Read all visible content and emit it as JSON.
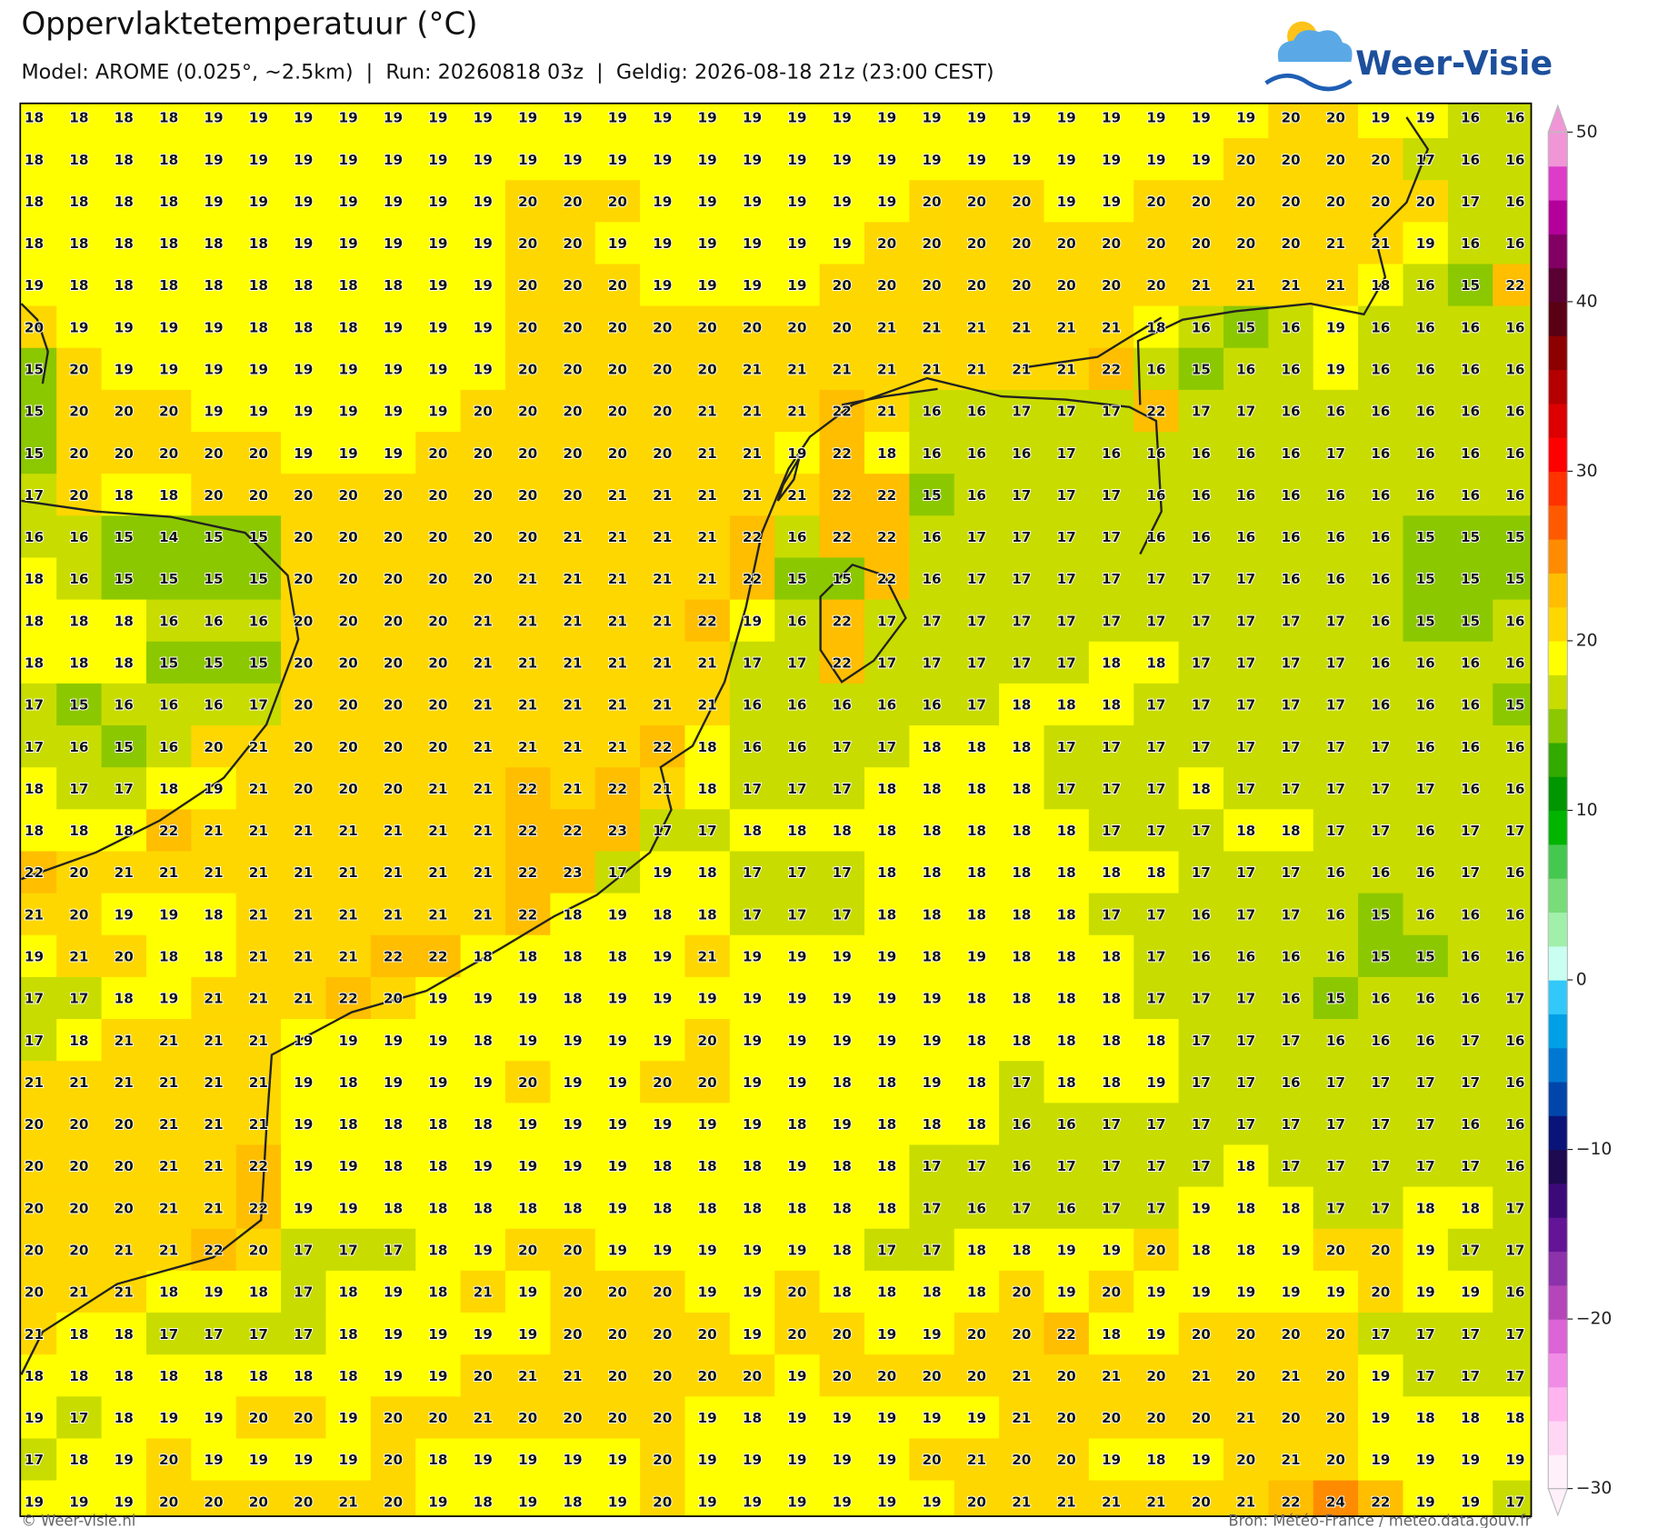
{
  "header": {
    "title": "Oppervlaktetemperatuur (°C)",
    "subtitle": "Model: AROME (0.025°, ~2.5km)  |  Run: 20260818 03z  |  Geldig: 2026-08-18 21z (23:00 CEST)",
    "logo": "Weer-Visie"
  },
  "map": {
    "rows": [
      [
        18,
        18,
        18,
        18,
        19,
        19,
        19,
        19,
        19,
        19,
        19,
        19,
        19,
        19,
        19,
        19,
        19,
        19,
        19,
        19,
        19,
        19,
        19,
        19,
        19,
        19,
        19,
        19,
        20,
        20,
        19,
        19,
        16,
        16
      ],
      [
        18,
        18,
        18,
        18,
        19,
        19,
        19,
        19,
        19,
        19,
        19,
        19,
        19,
        19,
        19,
        19,
        19,
        19,
        19,
        19,
        19,
        19,
        19,
        19,
        19,
        19,
        19,
        20,
        20,
        20,
        20,
        17,
        16,
        16
      ],
      [
        18,
        18,
        18,
        18,
        19,
        19,
        19,
        19,
        19,
        19,
        19,
        20,
        20,
        20,
        19,
        19,
        19,
        19,
        19,
        19,
        20,
        20,
        20,
        19,
        19,
        20,
        20,
        20,
        20,
        20,
        20,
        20,
        17,
        16
      ],
      [
        18,
        18,
        18,
        18,
        18,
        18,
        19,
        19,
        19,
        19,
        19,
        20,
        20,
        19,
        19,
        19,
        19,
        19,
        19,
        20,
        20,
        20,
        20,
        20,
        20,
        20,
        20,
        20,
        20,
        21,
        21,
        19,
        16,
        16
      ],
      [
        19,
        18,
        18,
        18,
        18,
        18,
        18,
        18,
        18,
        19,
        19,
        20,
        20,
        20,
        19,
        19,
        19,
        19,
        20,
        20,
        20,
        20,
        20,
        20,
        20,
        20,
        21,
        21,
        21,
        21,
        18,
        16,
        15,
        22
      ],
      [
        20,
        19,
        19,
        19,
        19,
        18,
        18,
        18,
        19,
        19,
        19,
        20,
        20,
        20,
        20,
        20,
        20,
        20,
        20,
        21,
        21,
        21,
        21,
        21,
        21,
        18,
        16,
        15,
        16,
        19,
        16,
        16,
        16,
        16
      ],
      [
        15,
        20,
        19,
        19,
        19,
        19,
        19,
        19,
        19,
        19,
        19,
        20,
        20,
        20,
        20,
        20,
        21,
        21,
        21,
        21,
        21,
        21,
        21,
        21,
        22,
        16,
        15,
        16,
        16,
        19,
        16,
        16,
        16,
        16
      ],
      [
        15,
        20,
        20,
        20,
        19,
        19,
        19,
        19,
        19,
        19,
        20,
        20,
        20,
        20,
        20,
        21,
        21,
        21,
        22,
        21,
        16,
        16,
        17,
        17,
        17,
        22,
        17,
        17,
        16,
        16,
        16,
        16,
        16,
        16
      ],
      [
        15,
        20,
        20,
        20,
        20,
        20,
        19,
        19,
        19,
        20,
        20,
        20,
        20,
        20,
        20,
        21,
        21,
        19,
        22,
        18,
        16,
        16,
        16,
        17,
        16,
        16,
        16,
        16,
        16,
        17,
        16,
        16,
        16,
        16
      ],
      [
        17,
        20,
        18,
        18,
        20,
        20,
        20,
        20,
        20,
        20,
        20,
        20,
        20,
        21,
        21,
        21,
        21,
        21,
        22,
        22,
        15,
        16,
        17,
        17,
        17,
        16,
        16,
        16,
        16,
        16,
        16,
        16,
        16,
        16
      ],
      [
        16,
        16,
        15,
        14,
        15,
        15,
        20,
        20,
        20,
        20,
        20,
        20,
        21,
        21,
        21,
        21,
        22,
        16,
        22,
        22,
        16,
        17,
        17,
        17,
        17,
        16,
        16,
        16,
        16,
        16,
        16,
        15,
        15,
        15
      ],
      [
        18,
        16,
        15,
        15,
        15,
        15,
        20,
        20,
        20,
        20,
        20,
        21,
        21,
        21,
        21,
        21,
        22,
        15,
        15,
        22,
        16,
        17,
        17,
        17,
        17,
        17,
        17,
        17,
        16,
        16,
        16,
        15,
        15,
        15
      ],
      [
        18,
        18,
        18,
        16,
        16,
        16,
        20,
        20,
        20,
        20,
        21,
        21,
        21,
        21,
        21,
        22,
        19,
        16,
        22,
        17,
        17,
        17,
        17,
        17,
        17,
        17,
        17,
        17,
        17,
        17,
        16,
        15,
        15,
        16
      ],
      [
        18,
        18,
        18,
        15,
        15,
        15,
        20,
        20,
        20,
        20,
        21,
        21,
        21,
        21,
        21,
        21,
        17,
        17,
        22,
        17,
        17,
        17,
        17,
        17,
        18,
        18,
        17,
        17,
        17,
        17,
        16,
        16,
        16,
        16
      ],
      [
        17,
        15,
        16,
        16,
        16,
        17,
        20,
        20,
        20,
        20,
        21,
        21,
        21,
        21,
        21,
        21,
        16,
        16,
        16,
        16,
        16,
        17,
        18,
        18,
        18,
        17,
        17,
        17,
        17,
        17,
        16,
        16,
        16,
        15
      ],
      [
        17,
        16,
        15,
        16,
        20,
        21,
        20,
        20,
        20,
        20,
        21,
        21,
        21,
        21,
        22,
        18,
        16,
        16,
        17,
        17,
        18,
        18,
        18,
        17,
        17,
        17,
        17,
        17,
        17,
        17,
        17,
        16,
        16,
        16
      ],
      [
        18,
        17,
        17,
        18,
        19,
        21,
        20,
        20,
        20,
        21,
        21,
        22,
        21,
        22,
        21,
        18,
        17,
        17,
        17,
        18,
        18,
        18,
        18,
        17,
        17,
        17,
        18,
        17,
        17,
        17,
        17,
        17,
        16,
        16
      ],
      [
        18,
        18,
        18,
        22,
        21,
        21,
        21,
        21,
        21,
        21,
        21,
        22,
        22,
        23,
        17,
        17,
        18,
        18,
        18,
        18,
        18,
        18,
        18,
        18,
        17,
        17,
        17,
        18,
        18,
        17,
        17,
        16,
        17,
        17
      ],
      [
        22,
        20,
        21,
        21,
        21,
        21,
        21,
        21,
        21,
        21,
        21,
        22,
        23,
        17,
        19,
        18,
        17,
        17,
        17,
        18,
        18,
        18,
        18,
        18,
        18,
        18,
        17,
        17,
        17,
        16,
        16,
        16,
        17,
        16
      ],
      [
        21,
        20,
        19,
        19,
        18,
        21,
        21,
        21,
        21,
        21,
        21,
        22,
        18,
        19,
        18,
        18,
        17,
        17,
        17,
        18,
        18,
        18,
        18,
        18,
        17,
        17,
        16,
        17,
        17,
        16,
        15,
        16,
        16,
        16
      ],
      [
        19,
        21,
        20,
        18,
        18,
        21,
        21,
        21,
        22,
        22,
        18,
        18,
        18,
        18,
        19,
        21,
        19,
        19,
        19,
        19,
        18,
        19,
        18,
        18,
        18,
        17,
        16,
        16,
        16,
        16,
        15,
        15,
        16,
        16
      ],
      [
        17,
        17,
        18,
        19,
        21,
        21,
        21,
        22,
        20,
        19,
        19,
        19,
        18,
        19,
        19,
        19,
        19,
        19,
        19,
        19,
        19,
        18,
        18,
        18,
        18,
        17,
        17,
        17,
        16,
        15,
        16,
        16,
        16,
        17
      ],
      [
        17,
        18,
        21,
        21,
        21,
        21,
        19,
        19,
        19,
        19,
        18,
        19,
        19,
        19,
        19,
        20,
        19,
        19,
        19,
        19,
        19,
        18,
        18,
        18,
        18,
        18,
        17,
        17,
        17,
        16,
        16,
        16,
        17,
        16
      ],
      [
        21,
        21,
        21,
        21,
        21,
        21,
        19,
        18,
        19,
        19,
        19,
        20,
        19,
        19,
        20,
        20,
        19,
        19,
        18,
        18,
        19,
        18,
        17,
        18,
        18,
        19,
        17,
        17,
        16,
        17,
        17,
        17,
        17,
        16
      ],
      [
        20,
        20,
        20,
        21,
        21,
        21,
        19,
        18,
        18,
        18,
        18,
        19,
        19,
        19,
        19,
        19,
        19,
        18,
        19,
        18,
        18,
        18,
        16,
        16,
        17,
        17,
        17,
        17,
        17,
        17,
        17,
        17,
        16,
        16
      ],
      [
        20,
        20,
        20,
        21,
        21,
        22,
        19,
        19,
        18,
        18,
        19,
        19,
        19,
        19,
        18,
        18,
        18,
        19,
        18,
        18,
        17,
        17,
        16,
        17,
        17,
        17,
        17,
        18,
        17,
        17,
        17,
        17,
        17,
        16
      ],
      [
        20,
        20,
        20,
        21,
        21,
        22,
        19,
        19,
        18,
        18,
        18,
        18,
        18,
        19,
        18,
        18,
        18,
        18,
        18,
        18,
        17,
        16,
        17,
        16,
        17,
        17,
        19,
        18,
        18,
        17,
        17,
        18,
        18,
        17
      ],
      [
        20,
        20,
        21,
        21,
        22,
        20,
        17,
        17,
        17,
        18,
        19,
        20,
        20,
        19,
        19,
        19,
        19,
        19,
        18,
        17,
        17,
        18,
        18,
        19,
        19,
        20,
        18,
        18,
        19,
        20,
        20,
        19,
        17,
        17
      ],
      [
        20,
        21,
        21,
        18,
        19,
        18,
        17,
        18,
        19,
        18,
        21,
        19,
        20,
        20,
        20,
        19,
        19,
        20,
        18,
        18,
        18,
        18,
        20,
        19,
        20,
        19,
        19,
        19,
        19,
        19,
        20,
        19,
        19,
        16
      ],
      [
        21,
        18,
        18,
        17,
        17,
        17,
        17,
        18,
        19,
        19,
        19,
        19,
        20,
        20,
        20,
        20,
        19,
        20,
        20,
        19,
        19,
        20,
        20,
        22,
        18,
        19,
        20,
        20,
        20,
        20,
        17,
        17,
        17,
        17
      ],
      [
        18,
        18,
        18,
        18,
        18,
        18,
        18,
        18,
        19,
        19,
        20,
        21,
        21,
        20,
        20,
        20,
        20,
        19,
        20,
        20,
        20,
        20,
        21,
        20,
        21,
        20,
        21,
        20,
        21,
        20,
        19,
        17,
        17,
        17
      ],
      [
        19,
        17,
        18,
        19,
        19,
        20,
        20,
        19,
        20,
        20,
        21,
        20,
        20,
        20,
        20,
        19,
        18,
        19,
        19,
        19,
        19,
        19,
        21,
        20,
        20,
        20,
        20,
        21,
        20,
        20,
        19,
        18,
        18,
        18
      ],
      [
        17,
        18,
        19,
        20,
        19,
        19,
        19,
        19,
        20,
        18,
        19,
        19,
        19,
        19,
        20,
        19,
        19,
        19,
        19,
        19,
        20,
        21,
        20,
        20,
        19,
        18,
        19,
        20,
        21,
        20,
        19,
        19,
        19,
        19
      ],
      [
        19,
        19,
        19,
        20,
        20,
        20,
        20,
        21,
        20,
        19,
        18,
        19,
        18,
        19,
        20,
        19,
        19,
        19,
        19,
        19,
        19,
        20,
        21,
        21,
        21,
        21,
        20,
        21,
        22,
        24,
        22,
        19,
        19,
        17
      ]
    ]
  },
  "colorbar": {
    "lim": [
      -30,
      50
    ],
    "ticks": [
      {
        "value": -30,
        "label": "−30"
      },
      {
        "value": -20,
        "label": "−20"
      },
      {
        "value": -10,
        "label": "−10"
      },
      0,
      10,
      20,
      30,
      40,
      50
    ],
    "colors": [
      "#fff0fa",
      "#ffd7f5",
      "#ffb4f0",
      "#f08ce6",
      "#dc64d7",
      "#b446b9",
      "#8c32aa",
      "#641496",
      "#3c0a78",
      "#1e0a50",
      "#0a1478",
      "#0046aa",
      "#0078d2",
      "#00a0e6",
      "#32c8fa",
      "#c8fff0",
      "#a0f0aa",
      "#78dc78",
      "#46c850",
      "#00b400",
      "#009600",
      "#32aa00",
      "#8cc800",
      "#c8dc00",
      "#ffff00",
      "#ffd700",
      "#ffbe00",
      "#ff8c00",
      "#ff5a00",
      "#ff3200",
      "#ff0000",
      "#dc0000",
      "#b40000",
      "#8c0000",
      "#5a0014",
      "#5a0032",
      "#820064",
      "#b4009b",
      "#dc3cc8",
      "#f096d7"
    ]
  },
  "footer": {
    "left": "© Weer-visie.nl",
    "right": "Bron: Météo-France / meteo.data.gouv.fr"
  }
}
